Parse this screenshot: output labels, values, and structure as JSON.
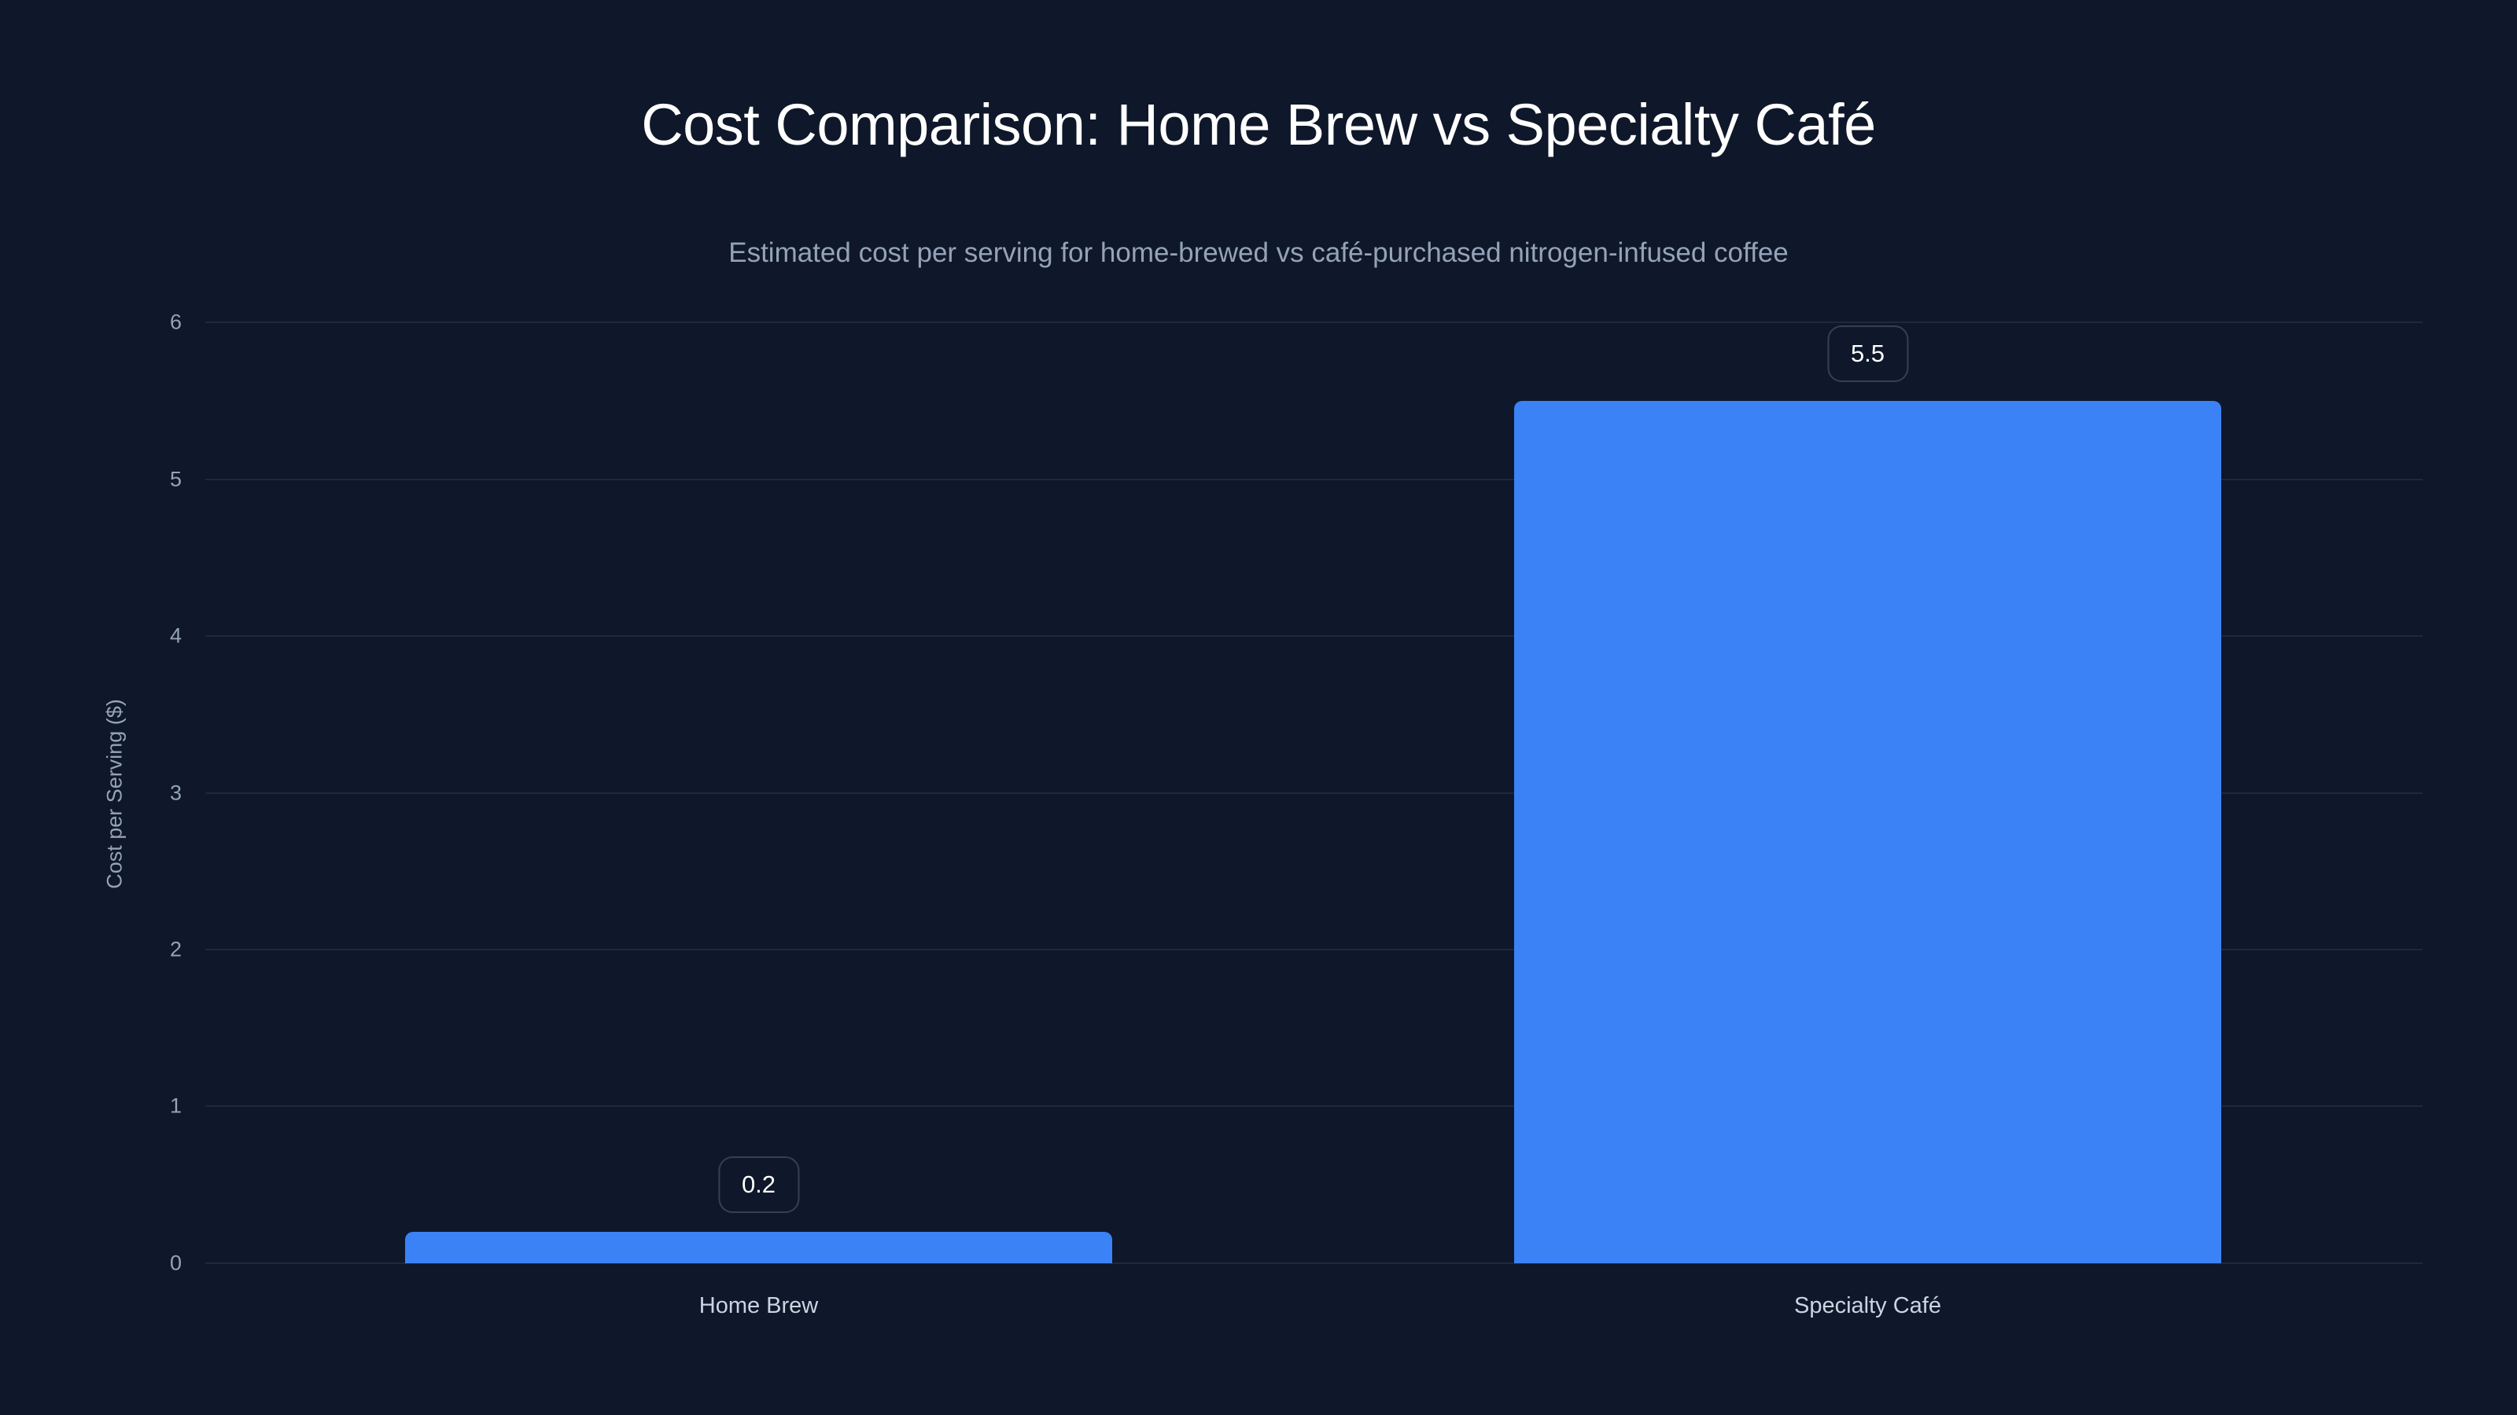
{
  "chart": {
    "title": "Cost Comparison: Home Brew vs Specialty Café",
    "subtitle": "Estimated cost per serving for home-brewed vs café-purchased nitrogen-infused coffee",
    "ylabel": "Cost per Serving ($)",
    "yticks": [
      "0",
      "1",
      "2",
      "3",
      "4",
      "5",
      "6"
    ],
    "bars": [
      {
        "label": "Home Brew",
        "value_label": "0.2"
      },
      {
        "label": "Specialty Café",
        "value_label": "5.5"
      }
    ],
    "colors": {
      "background": "#0f172a",
      "bar": "#3b82f6",
      "grid": "#1e293b",
      "muted_text": "#94a3b8"
    }
  },
  "chart_data": {
    "type": "bar",
    "title": "Cost Comparison: Home Brew vs Specialty Café",
    "subtitle": "Estimated cost per serving for home-brewed vs café-purchased nitrogen-infused coffee",
    "categories": [
      "Home Brew",
      "Specialty Café"
    ],
    "values": [
      0.2,
      5.5
    ],
    "xlabel": "",
    "ylabel": "Cost per Serving ($)",
    "ylim": [
      0,
      6
    ],
    "yticks": [
      0,
      1,
      2,
      3,
      4,
      5,
      6
    ],
    "grid": true,
    "legend": null,
    "data_labels": true
  }
}
